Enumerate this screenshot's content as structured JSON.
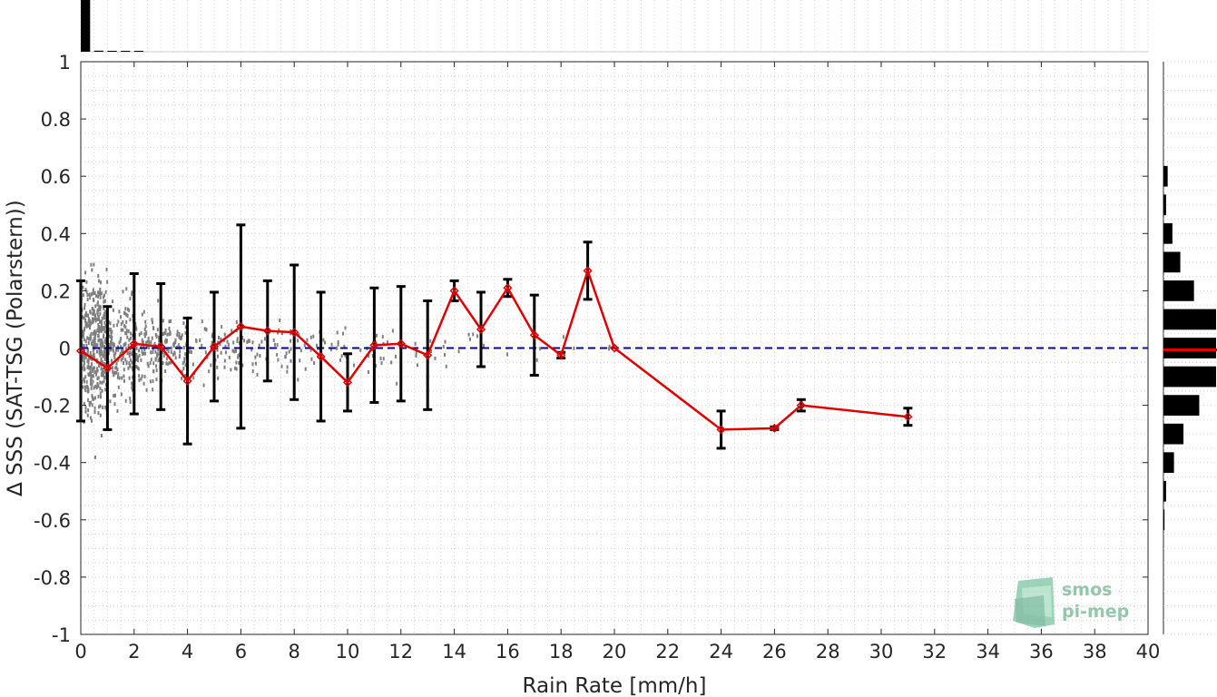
{
  "chart_data": {
    "type": "scatter",
    "xlabel": "Rain Rate [mm/h]",
    "ylabel": "∆ SSS (SAT-TSG (Polarstern))",
    "xlim": [
      0,
      40
    ],
    "ylim": [
      -1,
      1
    ],
    "x_ticks": [
      0,
      2,
      4,
      6,
      8,
      10,
      12,
      14,
      16,
      18,
      20,
      22,
      24,
      26,
      28,
      30,
      32,
      34,
      36,
      38,
      40
    ],
    "x_tick_labels": [
      "0",
      "2",
      "4",
      "6",
      "8",
      "10",
      "12",
      "14",
      "16",
      "18",
      "20",
      "22",
      "24",
      "26",
      "28",
      "30",
      "32",
      "34",
      "36",
      "38",
      "40"
    ],
    "y_ticks": [
      -1,
      -0.8,
      -0.6,
      -0.4,
      -0.2,
      0,
      0.2,
      0.4,
      0.6,
      0.8,
      1
    ],
    "y_tick_labels": [
      "-1",
      "-0.8",
      "-0.6",
      "-0.4",
      "-0.2",
      "0",
      "0.2",
      "0.4",
      "0.6",
      "0.8",
      "1"
    ],
    "grid": true,
    "reference_line": {
      "y": 0,
      "style": "dashed",
      "color": "#0000b0"
    },
    "colors": {
      "scatter": "#7f7f7f",
      "mean_line": "#e00000",
      "error_bars": "#000000",
      "histograms": "#000000"
    },
    "binned_mean": {
      "x": [
        0,
        1,
        2,
        3,
        4,
        5,
        6,
        7,
        8,
        9,
        10,
        11,
        12,
        13,
        14,
        15,
        16,
        17,
        18,
        19,
        20,
        24,
        26,
        27,
        31
      ],
      "y": [
        -0.01,
        -0.07,
        0.015,
        0.005,
        -0.115,
        0.005,
        0.075,
        0.06,
        0.055,
        -0.03,
        -0.12,
        0.01,
        0.015,
        -0.025,
        0.2,
        0.065,
        0.21,
        0.045,
        -0.025,
        0.27,
        0.0,
        -0.285,
        -0.28,
        -0.2,
        -0.24
      ],
      "err": [
        0.245,
        0.215,
        0.245,
        0.22,
        0.22,
        0.19,
        0.355,
        0.175,
        0.235,
        0.225,
        0.1,
        0.2,
        0.2,
        0.19,
        0.035,
        0.13,
        0.03,
        0.14,
        0.01,
        0.1,
        0.0,
        0.065,
        0.005,
        0.02,
        0.03
      ]
    },
    "scatter_points": {
      "description_count": 0,
      "bins": [
        {
          "x_range": [
            0,
            1
          ],
          "y_spread": 0.32,
          "density": 420
        },
        {
          "x_range": [
            1,
            2
          ],
          "y_spread": 0.22,
          "density": 160
        },
        {
          "x_range": [
            2,
            3
          ],
          "y_spread": 0.16,
          "density": 110
        },
        {
          "x_range": [
            3,
            4
          ],
          "y_spread": 0.13,
          "density": 80
        },
        {
          "x_range": [
            4,
            6
          ],
          "y_spread": 0.13,
          "density": 70
        },
        {
          "x_range": [
            6,
            8
          ],
          "y_spread": 0.11,
          "density": 45
        },
        {
          "x_range": [
            8,
            10
          ],
          "y_spread": 0.11,
          "density": 35
        },
        {
          "x_range": [
            10,
            13
          ],
          "y_spread": 0.1,
          "density": 25
        },
        {
          "x_range": [
            13,
            17
          ],
          "y_spread": 0.08,
          "density": 14
        },
        {
          "x_range": [
            17,
            20
          ],
          "y_spread": 0.08,
          "density": 6
        }
      ]
    },
    "top_histogram": {
      "bin_edges_x": [
        0,
        0.5,
        1,
        1.5,
        2,
        2.5
      ],
      "relative_heights": [
        1.0,
        0.02,
        0.015,
        0.01,
        0.008
      ]
    },
    "right_histogram": {
      "bin_centers_y": [
        0.6,
        0.5,
        0.4,
        0.3,
        0.2,
        0.1,
        0.0,
        -0.1,
        -0.2,
        -0.3,
        -0.4,
        -0.5,
        -0.6
      ],
      "relative_widths": [
        0.08,
        0.05,
        0.17,
        0.32,
        0.58,
        1.0,
        1.0,
        1.0,
        0.68,
        0.38,
        0.2,
        0.05,
        0.02
      ],
      "median_marker_y": 0,
      "median_marker_color": "#e00000"
    },
    "logo": {
      "line1": "smos",
      "line2": "pi-mep"
    }
  }
}
